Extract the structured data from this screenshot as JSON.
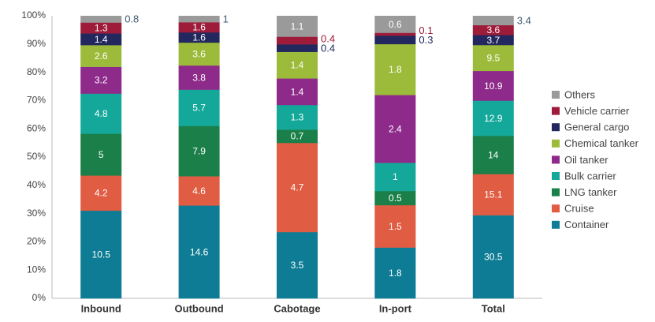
{
  "chart_data": {
    "type": "stacked_percent_bar",
    "categories": [
      "Inbound",
      "Outbound",
      "Cabotage",
      "In-port",
      "Total"
    ],
    "series": [
      {
        "name": "Container",
        "color": "#0e7c94",
        "values": [
          10.5,
          14.6,
          3.5,
          1.8,
          30.5
        ]
      },
      {
        "name": "Cruise",
        "color": "#e05c43",
        "values": [
          4.2,
          4.6,
          4.7,
          1.5,
          15.1
        ]
      },
      {
        "name": "LNG tanker",
        "color": "#1a7f48",
        "values": [
          5.0,
          7.9,
          0.7,
          0.5,
          14.0
        ]
      },
      {
        "name": "Bulk carrier",
        "color": "#14a89a",
        "values": [
          4.8,
          5.7,
          1.3,
          1.0,
          12.9
        ]
      },
      {
        "name": "Oil tanker",
        "color": "#8e2a8a",
        "values": [
          3.2,
          3.8,
          1.4,
          2.4,
          10.9
        ]
      },
      {
        "name": "Chemical tanker",
        "color": "#9dbb3a",
        "values": [
          2.6,
          3.6,
          1.4,
          1.8,
          9.5
        ]
      },
      {
        "name": "General cargo",
        "color": "#22285e",
        "values": [
          1.4,
          1.6,
          0.4,
          0.3,
          3.7
        ]
      },
      {
        "name": "Vehicle carrier",
        "color": "#9e1b3a",
        "values": [
          1.3,
          1.6,
          0.4,
          0.1,
          3.6
        ]
      },
      {
        "name": "Others",
        "color": "#9a9a9a",
        "values": [
          0.8,
          1.0,
          1.1,
          0.6,
          3.4
        ]
      }
    ],
    "ylim": [
      0,
      100
    ],
    "yticks": [
      {
        "value": 0,
        "label": "0%"
      },
      {
        "value": 10,
        "label": "10%"
      },
      {
        "value": 20,
        "label": "20%"
      },
      {
        "value": 30,
        "label": "30%"
      },
      {
        "value": 40,
        "label": "40%"
      },
      {
        "value": 50,
        "label": "50%"
      },
      {
        "value": 60,
        "label": "60%"
      },
      {
        "value": 70,
        "label": "70%"
      },
      {
        "value": 80,
        "label": "80%"
      },
      {
        "value": 90,
        "label": "90%"
      },
      {
        "value": 100,
        "label": "100%"
      }
    ],
    "grid": false,
    "legend": "right"
  }
}
